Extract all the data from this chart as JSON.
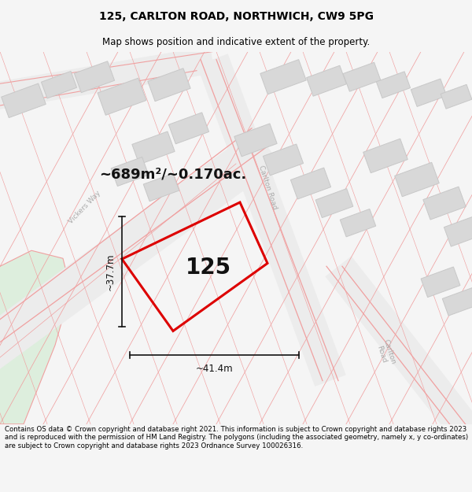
{
  "title": "125, CARLTON ROAD, NORTHWICH, CW9 5PG",
  "subtitle": "Map shows position and indicative extent of the property.",
  "footer": "Contains OS data © Crown copyright and database right 2021. This information is subject to Crown copyright and database rights 2023 and is reproduced with the permission of HM Land Registry. The polygons (including the associated geometry, namely x, y co-ordinates) are subject to Crown copyright and database rights 2023 Ordnance Survey 100026316.",
  "area_text": "~689m²/~0.170ac.",
  "dim_width": "~41.4m",
  "dim_height": "~37.7m",
  "title_fontsize": 10,
  "subtitle_fontsize": 8.5,
  "footer_fontsize": 6.2,
  "map_bg": "#f8f8f8",
  "green_color": "#ddeedd",
  "building_fill": "#d8d8d8",
  "building_edge": "#c8c8c8",
  "road_line_color": "#f0a0a0",
  "highlight_color": "#dd0000",
  "road_band_color": "#ebebeb",
  "label_color": "#bbbbbb",
  "dim_line_color": "#111111",
  "text_color": "#111111"
}
